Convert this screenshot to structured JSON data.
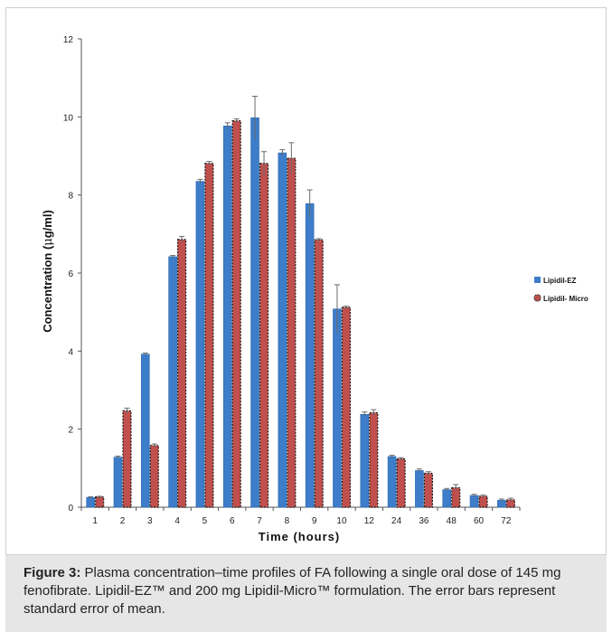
{
  "chart_data": {
    "type": "bar",
    "title": "",
    "xlabel": "Time (hours)",
    "ylabel_parts": [
      "Concentration (",
      "μ",
      "g/ml)"
    ],
    "ylim": [
      0,
      12
    ],
    "yticks": [
      0,
      2,
      4,
      6,
      8,
      10,
      12
    ],
    "grid": false,
    "legend_placement": "right",
    "categories": [
      "1",
      "2",
      "3",
      "4",
      "5",
      "6",
      "7",
      "8",
      "9",
      "10",
      "12",
      "24",
      "36",
      "48",
      "60",
      "72"
    ],
    "series": [
      {
        "name": "Lipidil-EZ",
        "color": "#3d7dc9",
        "values": [
          0.25,
          1.28,
          3.92,
          6.42,
          8.35,
          9.77,
          9.98,
          9.08,
          7.78,
          5.08,
          2.38,
          1.3,
          0.94,
          0.45,
          0.3,
          0.18
        ],
        "errors": [
          0.02,
          0.03,
          0.03,
          0.03,
          0.05,
          0.08,
          0.55,
          0.08,
          0.35,
          0.62,
          0.06,
          0.03,
          0.04,
          0.03,
          0.03,
          0.03
        ]
      },
      {
        "name": "Lipidil- Micro",
        "color": "#c0504d",
        "values": [
          0.26,
          2.47,
          1.58,
          6.86,
          8.81,
          9.9,
          8.81,
          8.94,
          6.85,
          5.12,
          2.42,
          1.24,
          0.87,
          0.5,
          0.28,
          0.19
        ],
        "errors": [
          0.02,
          0.07,
          0.04,
          0.08,
          0.05,
          0.05,
          0.3,
          0.4,
          0.03,
          0.03,
          0.08,
          0.03,
          0.04,
          0.08,
          0.03,
          0.04
        ]
      }
    ]
  },
  "caption": {
    "label": "Figure 3:",
    "text": " Plasma concentration–time profiles of FA following a single oral dose of 145 mg fenofibrate. Lipidil-EZ™ and 200 mg  Lipidil-Micro™ formulation. The error bars represent standard error of mean."
  }
}
